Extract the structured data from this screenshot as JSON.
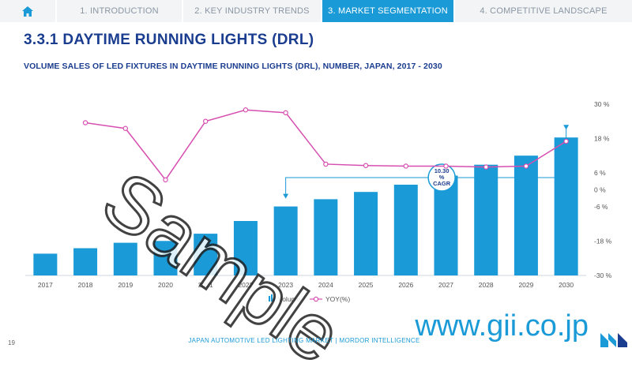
{
  "nav": {
    "home_icon": "home-icon",
    "tabs": [
      {
        "label": "1. INTRODUCTION",
        "active": false
      },
      {
        "label": "2. KEY INDUSTRY TRENDS",
        "active": false
      },
      {
        "label": "3. MARKET SEGMENTATION",
        "active": true
      },
      {
        "label": "4. COMPETITIVE LANDSCAPE",
        "active": false
      }
    ]
  },
  "title": "3.3.1 DAYTIME RUNNING LIGHTS (DRL)",
  "watermark": "Sample",
  "footer": {
    "page": "19",
    "text": "JAPAN AUTOMOTIVE LED LIGHTING MARKET | MORDOR INTELLIGENCE",
    "site": "www.gii.co.jp"
  },
  "colors": {
    "bar": "#1a9ad6",
    "line": "#d64fb0",
    "nav_active": "#1a9ad6",
    "title": "#1b3d8f"
  },
  "chart_data": {
    "type": "bar",
    "title": "VOLUME SALES OF LED FIXTURES IN DAYTIME RUNNING LIGHTS (DRL), NUMBER, JAPAN, 2017 - 2030",
    "categories": [
      "2017",
      "2018",
      "2019",
      "2020",
      "2021",
      "2022",
      "2023",
      "2024",
      "2025",
      "2026",
      "2027",
      "2028",
      "2029",
      "2030"
    ],
    "series": [
      {
        "name": "Volume",
        "type": "bar",
        "values": [
          12,
          15,
          18,
          19,
          23,
          30,
          38,
          42,
          46,
          50,
          55,
          61,
          66,
          76
        ]
      },
      {
        "name": "YOY(%)",
        "type": "line",
        "axis": "right",
        "values": [
          null,
          23.5,
          21.5,
          3.5,
          24,
          28,
          27,
          9,
          8.5,
          8.3,
          8.3,
          8,
          8.3,
          17
        ]
      }
    ],
    "right_axis": {
      "ticks": [
        "30 %",
        "18 %",
        "6 %",
        "0 %",
        "-6 %",
        "-18 %",
        "-30 %"
      ],
      "values": [
        30,
        18,
        6,
        0,
        -6,
        -18,
        -30
      ],
      "ylim": [
        -30,
        30
      ]
    },
    "left_axis": {
      "ylim": [
        0,
        100
      ]
    },
    "annotation": {
      "cagr_value": "10.30",
      "cagr_unit": "%",
      "cagr_label": "CAGR",
      "from": "2023",
      "to": "2030"
    },
    "legend": {
      "placement": "bottom"
    },
    "grid": false
  }
}
